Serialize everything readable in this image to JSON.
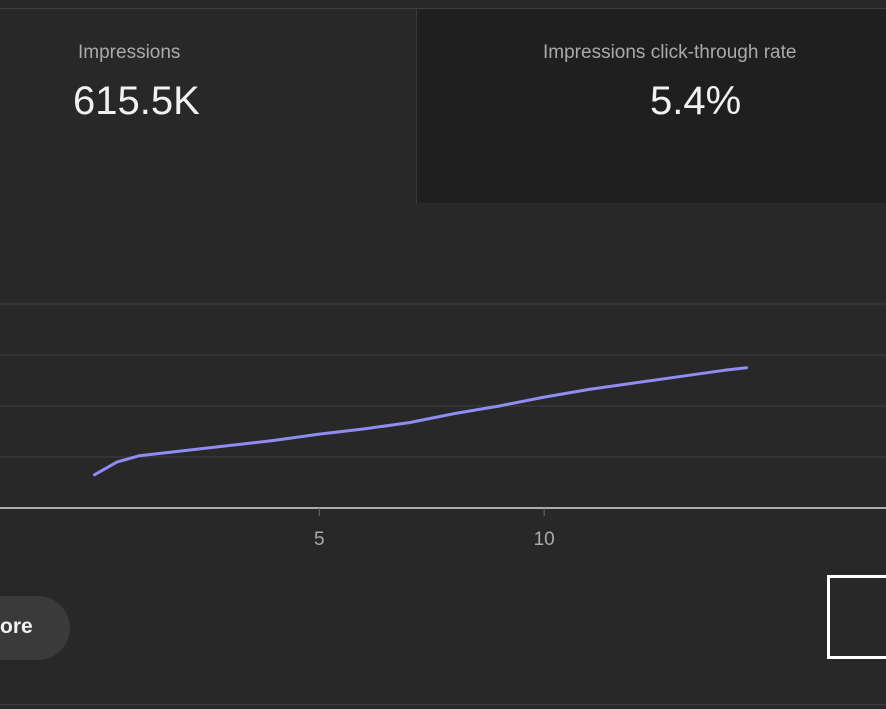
{
  "metrics": {
    "impressions": {
      "label": "Impressions",
      "value": "615.5K"
    },
    "ctr": {
      "label": "Impressions click-through rate",
      "value": "5.4%"
    }
  },
  "chart_data": {
    "type": "line",
    "title": "",
    "xlabel": "",
    "ylabel": "",
    "x_ticks": [
      "5",
      "10"
    ],
    "x": [
      0,
      0.5,
      1,
      2,
      3,
      4,
      5,
      6,
      7,
      8,
      9,
      10,
      11,
      12,
      13,
      14,
      14.5
    ],
    "series": [
      {
        "values": [
          2.6,
          3.6,
          4.1,
          4.5,
          4.9,
          5.3,
          5.8,
          6.2,
          6.7,
          7.4,
          8.0,
          8.7,
          9.3,
          9.8,
          10.3,
          10.8,
          11.0
        ]
      }
    ],
    "xlim": [
      -2.1,
      17.6
    ],
    "ylim": [
      0,
      16
    ],
    "grid": true,
    "colors": {
      "line": "#8f8cf2",
      "grid": "#3e3e3e",
      "axis": "#d8d8d8",
      "tick": "#aaaaaa"
    }
  },
  "actions": {
    "see_more": "ore"
  }
}
